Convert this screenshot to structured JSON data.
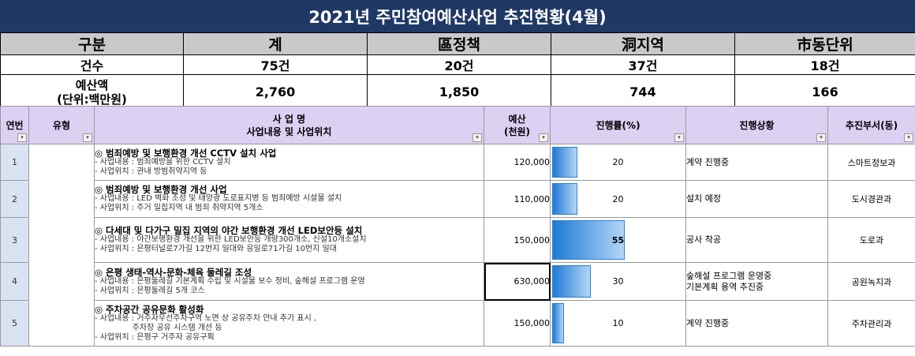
{
  "title": "2021년 주민참여예산사업 추진현황(4월)",
  "summary": {
    "headers": [
      "구분",
      "계",
      "區정책",
      "洞지역",
      "市동단위"
    ],
    "count_row": [
      "건수",
      "75건",
      "20건",
      "37건",
      "18건"
    ],
    "budget_row_label_line1": "예산액",
    "budget_row_label_line2": "(단위:백만원)",
    "budget_row": [
      "2,760",
      "1,850",
      "744",
      "166"
    ]
  },
  "table": {
    "headers": {
      "no": "연번",
      "type": "유형",
      "name_line1": "사 업 명",
      "name_line2": "사업내용 및 사업위치",
      "budget_line1": "예산",
      "budget_line2": "(천원)",
      "progress": "진행률(%)",
      "status": "진행상황",
      "dept": "추진부서(동)"
    },
    "filter_icon": "▾",
    "rows": [
      {
        "no": "1",
        "title": "◎ 범죄예방 및 보행환경 개선 CCTV 설치 사업",
        "lines": [
          "- 사업내용 : 범죄예방을 위한 CCTV 설치",
          "- 사업위치 : 관내 방범취약지역 등"
        ],
        "budget": "120,000",
        "progress": 20,
        "progress_label": "20",
        "status_lines": [
          "계약 진행중"
        ],
        "dept": "스마트정보과"
      },
      {
        "no": "2",
        "title": "◎ 범죄예방 및 보행환경 개선 사업",
        "lines": [
          "- 사업내용 : LED 벽화 조성 및 태양광 도로표지병 등 범죄예방 시설물 설치",
          "- 사업위치 : 주거 밀집지역 내 범죄 취약지역 5개소"
        ],
        "budget": "110,000",
        "progress": 20,
        "progress_label": "20",
        "status_lines": [
          "설치 예정"
        ],
        "dept": "도시경관과"
      },
      {
        "no": "3",
        "title": "◎ 다세대 및 다가구 밀집 지역의 야간 보행환경 개선 LED보안등 설치",
        "lines": [
          "- 사업내용 : 야간보행환경 개선을 위한 LED보안등 개량300개소, 신설10개소설치",
          "- 사업위치 : 은평터널로7가길 12번지 일대와 응일로71가길 10번지 일대"
        ],
        "budget": "150,000",
        "progress": 55,
        "progress_label": "55",
        "status_lines": [
          "공사 착공"
        ],
        "dept": "도로과"
      },
      {
        "no": "4",
        "title": "◎ 은평 생태-역사-문화-체육 둘레길 조성",
        "lines": [
          "- 사업내용 : 은평둘레길 기본계획 수립 및 시설물 보수 정비, 숲해설 프로그램 운영",
          "- 사업위치 : 은평둘레길 5개 코스"
        ],
        "budget": "630,000",
        "progress": 30,
        "progress_label": "30",
        "status_lines": [
          "숲해설 프로그램 운영중",
          "기본계획 용역 추진중"
        ],
        "dept": "공원녹지과"
      },
      {
        "no": "5",
        "title": "◎ 주차공간 공유문화 활성화",
        "lines": [
          "- 사업내용 : 거주자우선주차구역 노면 상 공유주차 안내 추가 표시 ,",
          "               주차장 공유 시스템 개선 등",
          "- 사업위치 : 은평구 거주자 공유구획"
        ],
        "budget": "150,000",
        "progress": 10,
        "progress_label": "10",
        "status_lines": [
          "계약 진행중"
        ],
        "dept": "주차관리과"
      }
    ]
  }
}
